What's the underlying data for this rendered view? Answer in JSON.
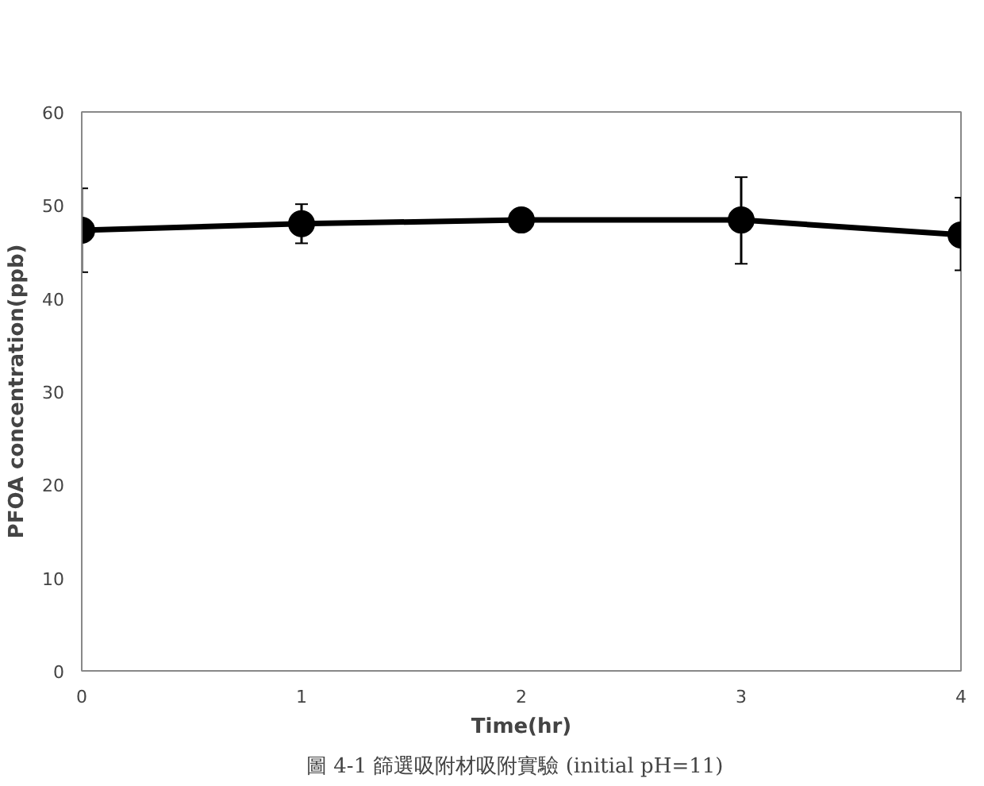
{
  "chart_data": {
    "type": "line",
    "xlabel": "Time(hr)",
    "ylabel": "PFOA concentration(ppb)",
    "x": [
      0,
      1,
      2,
      3,
      4
    ],
    "series": [
      {
        "color": "#000000",
        "values": [
          47.3,
          48.0,
          48.4,
          48.4,
          46.8
        ],
        "errors": [
          [
            42.8,
            51.8
          ],
          [
            45.9,
            50.1
          ],
          null,
          [
            43.7,
            53.0
          ],
          [
            43.0,
            50.8
          ]
        ]
      }
    ],
    "xlim": [
      0,
      4
    ],
    "xticks": [
      0,
      1,
      2,
      3,
      4
    ],
    "ylim": [
      0,
      60
    ],
    "yticks": [
      0,
      10,
      20,
      30,
      40,
      50,
      60
    ],
    "grid": false,
    "marker": "circle",
    "line_style": "solid",
    "annotations": [
      "圖 4-1  篩選吸附材吸附實驗  (initial pH=11)"
    ]
  }
}
